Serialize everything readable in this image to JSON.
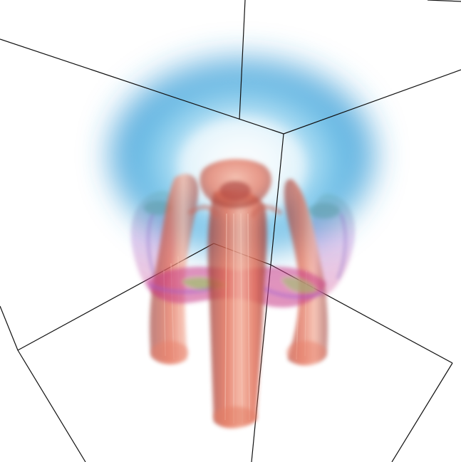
{
  "scene": {
    "kind": "3d-volume-rendering",
    "background": "#ffffff",
    "frame_line_color": "#111111",
    "palette": {
      "halo_light": "#dff3fb",
      "halo_mid": "#6cc3ea",
      "halo_deep": "#2a93d2",
      "tissue_light": "#f4b09c",
      "tissue_mid": "#e06a52",
      "tissue_dark": "#9a3b36",
      "band_magenta": "#d0307a",
      "band_purple": "#9a5bc9",
      "band_green": "#8fbf6a",
      "band_teal": "#5fa7a4"
    },
    "structures": [
      "bounding-box-wireframe",
      "blue-halo",
      "central-column",
      "top-cap",
      "left-tube",
      "right-tube",
      "left-outer-loop",
      "right-outer-loop",
      "magenta-band"
    ]
  }
}
